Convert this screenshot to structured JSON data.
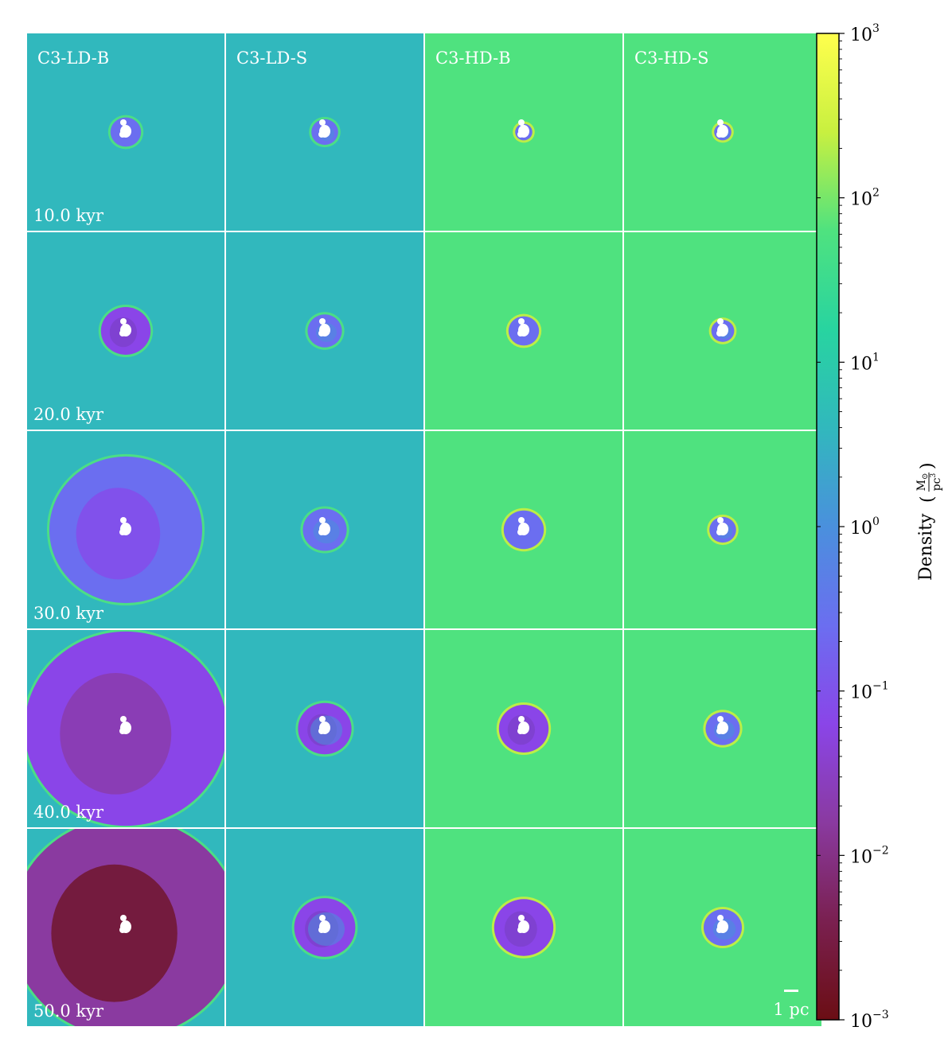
{
  "chart_data": {
    "type": "heatmap",
    "description_kind": "grid of density slice images",
    "columns": [
      "C3-LD-B",
      "C3-LD-S",
      "C3-HD-B",
      "C3-HD-S"
    ],
    "rows": [
      "10.0 kyr",
      "20.0 kyr",
      "30.0 kyr",
      "40.0 kyr",
      "50.0 kyr"
    ],
    "background_colors": [
      "#31b8bd",
      "#31b8bd",
      "#4fe27f",
      "#4fe27f"
    ],
    "bubble_extent_pc": [
      [
        0.8,
        0.7,
        0.45,
        0.45
      ],
      [
        1.3,
        0.9,
        0.8,
        0.6
      ],
      [
        4.0,
        1.15,
        1.05,
        0.7
      ],
      [
        5.3,
        1.4,
        1.3,
        0.9
      ],
      [
        6.0,
        1.6,
        1.55,
        1.0
      ]
    ],
    "scale_bar": {
      "label": "1 pc",
      "length_pc": 1
    },
    "colorbar": {
      "scale": "log",
      "range": [
        0.001,
        1000
      ],
      "ticks": [
        {
          "base": "10",
          "exp": "3",
          "value": 1000
        },
        {
          "base": "10",
          "exp": "2",
          "value": 100
        },
        {
          "base": "10",
          "exp": "1",
          "value": 10
        },
        {
          "base": "10",
          "exp": "0",
          "value": 1
        },
        {
          "base": "10",
          "exp": "−1",
          "value": 0.1
        },
        {
          "base": "10",
          "exp": "−2",
          "value": 0.01
        },
        {
          "base": "10",
          "exp": "−3",
          "value": 0.001
        }
      ],
      "label": "Density",
      "unit_numerator": "M",
      "unit_numerator_sub": "⊙",
      "unit_denominator": "pc",
      "unit_denominator_exp": "3",
      "colormap": [
        "#ffff4d",
        "#c8f040",
        "#4fe27f",
        "#28d4a0",
        "#31b8bd",
        "#4a90dd",
        "#6b6ef0",
        "#8a45e8",
        "#8a3aa0",
        "#7a2050",
        "#6b0e14"
      ]
    }
  }
}
